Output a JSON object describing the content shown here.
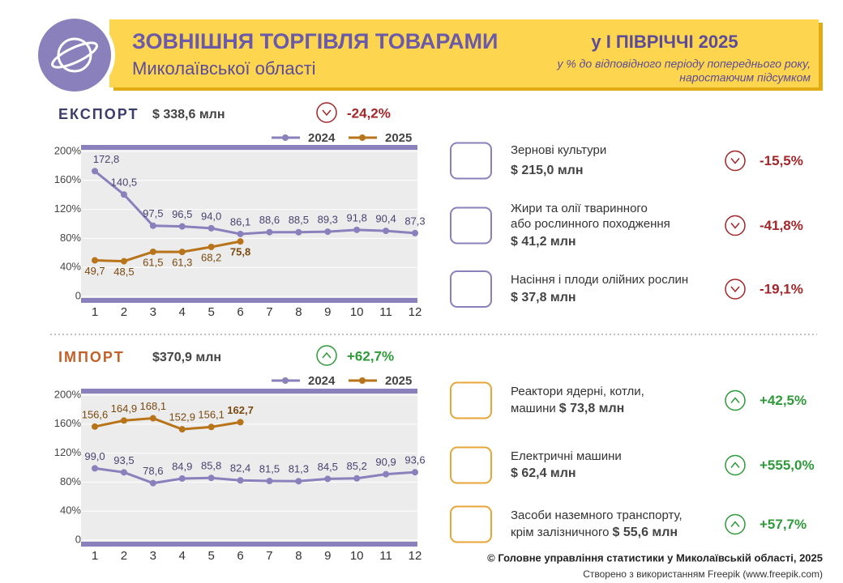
{
  "header": {
    "title": "ЗОВНІШНЯ ТОРГІВЛЯ ТОВАРАМИ",
    "subtitle": "Миколаївської області",
    "period": "у І ПІВРІЧЧІ 2025",
    "note1": "у % до відповідного періоду попереднього року,",
    "note2": "наростаючим підсумком"
  },
  "chart_data": [
    {
      "type": "line",
      "section": "ЕКСПОРТ",
      "total": "$ 338,6 млн",
      "change": "-24,2%",
      "direction": "down",
      "x": [
        1,
        2,
        3,
        4,
        5,
        6,
        7,
        8,
        9,
        10,
        11,
        12
      ],
      "ylim": [
        0,
        200
      ],
      "yticks": [
        0,
        {
          "value": 40,
          "label": "40%"
        },
        {
          "value": 80,
          "label": "80%"
        },
        {
          "value": 120,
          "label": "120%"
        },
        {
          "value": 160,
          "label": "160%"
        },
        {
          "value": 200,
          "label": "200%"
        }
      ],
      "series": [
        {
          "name": "2024",
          "color": "#8a80bc",
          "values": [
            172.8,
            140.5,
            97.5,
            96.5,
            94.0,
            86.1,
            88.6,
            88.5,
            89.3,
            91.8,
            90.4,
            87.3
          ],
          "value_labels": [
            "172,8",
            "140,5",
            "97,5",
            "96,5",
            "94,0",
            "86,1",
            "88,6",
            "88,5",
            "89,3",
            "91,8",
            "90,4",
            "87,3"
          ]
        },
        {
          "name": "2025",
          "color": "#b8741a",
          "values": [
            49.7,
            48.5,
            61.5,
            61.3,
            68.2,
            75.8,
            null,
            null,
            null,
            null,
            null,
            null
          ],
          "value_labels": [
            "49,7",
            "48,5",
            "61,5",
            "61,3",
            "68,2",
            "75,8",
            null,
            null,
            null,
            null,
            null,
            null
          ]
        }
      ],
      "items": [
        {
          "name1": "Зернові культури",
          "amount": "$ 215,0 млн",
          "change": "-15,5%"
        },
        {
          "name1": "Жири та олії тваринного",
          "name2": "або рослинного походження",
          "amount": "$ 41,2 млн",
          "change": "-41,8%"
        },
        {
          "name1": "Насіння і плоди олійних рослин",
          "amount": "$ 37,8 млн",
          "change": "-19,1%"
        }
      ]
    },
    {
      "type": "line",
      "section": "ІМПОРТ",
      "total": "$370,9 млн",
      "change": "+62,7%",
      "direction": "up",
      "x": [
        1,
        2,
        3,
        4,
        5,
        6,
        7,
        8,
        9,
        10,
        11,
        12
      ],
      "ylim": [
        0,
        200
      ],
      "yticks": [
        0,
        {
          "value": 40,
          "label": "40%"
        },
        {
          "value": 80,
          "label": "80%"
        },
        {
          "value": 120,
          "label": "120%"
        },
        {
          "value": 160,
          "label": "160%"
        },
        {
          "value": 200,
          "label": "200%"
        }
      ],
      "series": [
        {
          "name": "2024",
          "color": "#8a80bc",
          "values": [
            99.0,
            93.5,
            78.6,
            84.9,
            85.8,
            82.4,
            81.5,
            81.3,
            84.5,
            85.2,
            90.9,
            93.6
          ],
          "value_labels": [
            "99,0",
            "93,5",
            "78,6",
            "84,9",
            "85,8",
            "82,4",
            "81,5",
            "81,3",
            "84,5",
            "85,2",
            "90,9",
            "93,6"
          ]
        },
        {
          "name": "2025",
          "color": "#b8741a",
          "values": [
            156.6,
            164.9,
            168.1,
            152.9,
            156.1,
            162.7,
            null,
            null,
            null,
            null,
            null,
            null
          ],
          "value_labels": [
            "156,6",
            "164,9",
            "168,1",
            "152,9",
            "156,1",
            "162,7",
            null,
            null,
            null,
            null,
            null,
            null
          ]
        }
      ],
      "items": [
        {
          "name1": "Реактори ядерні, котли,",
          "name2": "машини",
          "amount": "$ 73,8 млн",
          "change": "+42,5%"
        },
        {
          "name1": "Електричні машини",
          "amount": "$ 62,4 млн",
          "change": "+555,0%"
        },
        {
          "name1": "Засоби наземного транспорту,",
          "name2": "крім залізничного",
          "amount": "$ 55,6 млн",
          "change": "+57,7%"
        }
      ]
    }
  ],
  "footer": {
    "line1": "© Головне управління статистики у Миколаївській області, 2025",
    "line2": "Створено з використанням Freepik (www.freepik.com)"
  }
}
